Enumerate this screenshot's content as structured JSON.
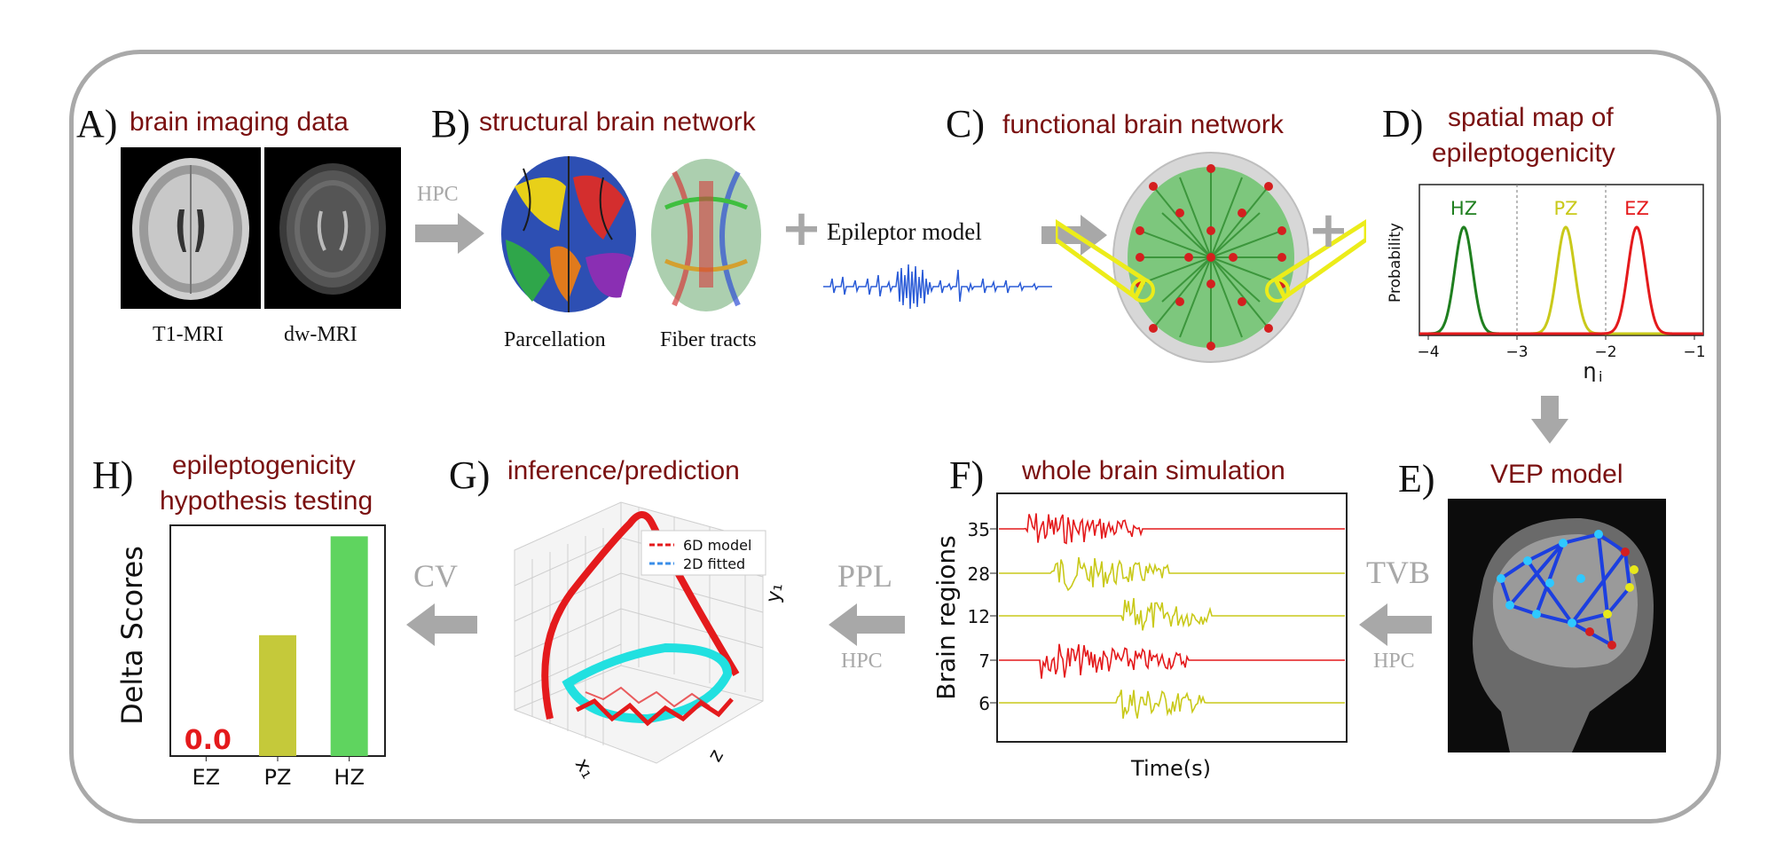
{
  "panels": {
    "a": {
      "letter": "A)",
      "title": "brain imaging data",
      "caption1": "T1-MRI",
      "caption2": "dw-MRI"
    },
    "b": {
      "letter": "B)",
      "title": "structural brain network",
      "caption1": "Parcellation",
      "caption2": "Fiber tracts"
    },
    "c": {
      "letter": "C)",
      "title": "functional brain network",
      "model_label": "Epileptor model"
    },
    "d": {
      "letter": "D)",
      "title_line1": "spatial map of",
      "title_line2": "epileptogenicity",
      "ylabel": "Probability",
      "xlabel": "η",
      "xlabel_sub": "i",
      "zones": [
        "HZ",
        "PZ",
        "EZ"
      ],
      "ticks": [
        "−4",
        "−3",
        "−2",
        "−1"
      ]
    },
    "e": {
      "letter": "E)",
      "title": "VEP model"
    },
    "f": {
      "letter": "F)",
      "title": "whole brain simulation",
      "ylabel": "Brain regions",
      "xlabel": "Time(s)",
      "regions": [
        "35",
        "28",
        "12",
        "7",
        "6"
      ]
    },
    "g": {
      "letter": "G)",
      "title": "inference/prediction",
      "legend1": "6D model",
      "legend2": "2D fitted",
      "axis_y": "y₁",
      "axis_x": "x₁",
      "axis_z": "z"
    },
    "h": {
      "letter": "H)",
      "title_line1": "epileptogenicity",
      "title_line2": "hypothesis testing",
      "ylabel": "Delta Scores",
      "zero_label": "0.0"
    }
  },
  "arrows": {
    "hpc1": "HPC",
    "tvb": "TVB",
    "hpc2": "HPC",
    "ppl": "PPL",
    "hpc3": "HPC",
    "cv": "CV"
  },
  "chart_data": [
    {
      "type": "line",
      "panel": "D",
      "xlabel": "ηi",
      "ylabel": "Probability",
      "xlim": [
        -4.1,
        -0.9
      ],
      "x_ticks": [
        -4,
        -3,
        -2,
        -1
      ],
      "dividers": [
        -3,
        -2
      ],
      "series": [
        {
          "name": "HZ",
          "color": "#1f7f1f",
          "mean": -3.6,
          "std": 0.1
        },
        {
          "name": "PZ",
          "color": "#c9c91a",
          "mean": -2.45,
          "std": 0.1
        },
        {
          "name": "EZ",
          "color": "#e41a1c",
          "mean": -1.65,
          "std": 0.1
        }
      ]
    },
    {
      "type": "bar",
      "panel": "H",
      "ylabel": "Delta Scores",
      "categories": [
        "EZ",
        "PZ",
        "HZ"
      ],
      "values": [
        0.0,
        0.55,
        1.0
      ],
      "colors": [
        "#e41a1c",
        "#c5c93a",
        "#5fd45f"
      ],
      "ylim": [
        0,
        1.05
      ]
    }
  ],
  "colors": {
    "title": "#7a1010",
    "arrow": "#a8a8a8",
    "ez": "#e41a1c",
    "pz": "#c9c91a",
    "hz": "#1f7f1f"
  }
}
